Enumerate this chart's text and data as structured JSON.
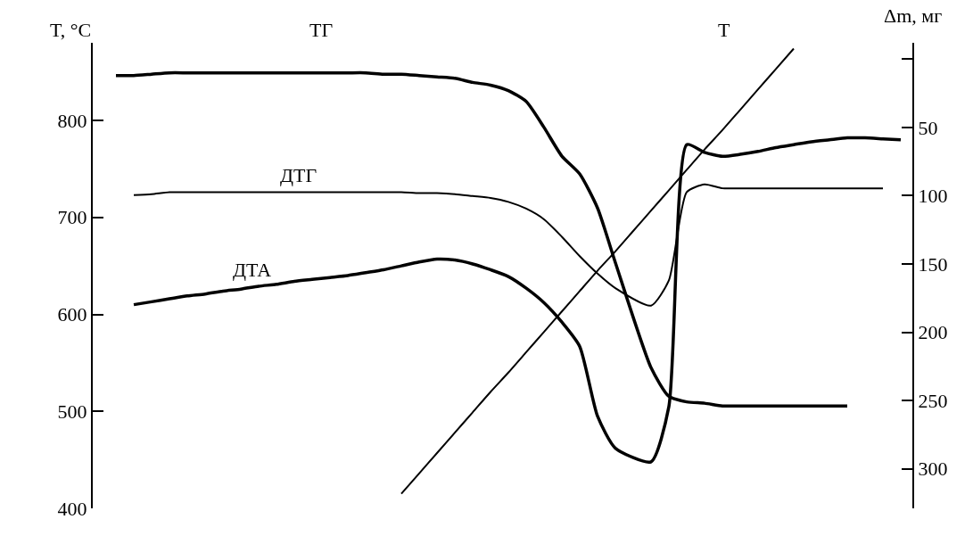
{
  "chart_data": {
    "type": "line",
    "xlabel": null,
    "ylabel": "T, °C",
    "y2label": "Δm, мг",
    "categories": [
      null,
      null,
      null,
      null,
      null,
      null,
      null,
      null,
      null,
      null,
      null,
      null,
      null,
      null,
      null,
      null,
      null,
      null,
      null,
      null,
      null,
      null,
      null,
      null,
      null,
      null,
      null,
      null,
      null,
      null,
      null,
      null,
      null,
      null,
      null,
      null,
      null,
      null,
      null,
      null,
      null,
      null,
      null,
      null,
      null
    ],
    "ylim": [
      400,
      880
    ],
    "yticks": [
      400,
      500,
      600,
      700,
      800
    ],
    "y2lim": [
      329,
      -12
    ],
    "y2ticks": [
      {
        "value": 0,
        "label": null
      },
      50,
      100,
      150,
      200,
      250,
      300
    ],
    "tick_labels": "y",
    "legend": false,
    "marker": "none",
    "series": [
      {
        "name": "T",
        "color": "#000000",
        "values": [
          null,
          null,
          null,
          null,
          null,
          null,
          null,
          null,
          null,
          null,
          null,
          null,
          null,
          null,
          null,
          null,
          415,
          436,
          457,
          478,
          499,
          520,
          540,
          561,
          582,
          603,
          624,
          645,
          665,
          686,
          707,
          728,
          749,
          770,
          790,
          811,
          832,
          853,
          874,
          null,
          null,
          null,
          null,
          null,
          null
        ]
      },
      {
        "name": "ТГ",
        "color": "#000000",
        "axis": "y2",
        "values": [
          12,
          12,
          11,
          10,
          10,
          10,
          10,
          10,
          10,
          10,
          10,
          10,
          10,
          10,
          10,
          11,
          11,
          12,
          13,
          14,
          17,
          19,
          23,
          31,
          50,
          71,
          84,
          109,
          149,
          null,
          226,
          247,
          251,
          252,
          254,
          254,
          254,
          254,
          254,
          254,
          254,
          254,
          null,
          null,
          null
        ]
      },
      {
        "name": "ДТГ",
        "color": "#000000",
        "values": [
          null,
          723,
          724,
          726,
          726,
          726,
          726,
          726,
          726,
          726,
          726,
          726,
          726,
          726,
          726,
          726,
          726,
          725,
          725,
          724,
          722,
          720,
          716,
          709,
          698,
          680,
          660,
          642,
          627,
          null,
          609,
          635,
          726,
          734,
          730,
          730,
          730,
          730,
          730,
          730,
          730,
          730,
          730,
          730,
          null
        ]
      },
      {
        "name": "ДТА",
        "color": "#000000",
        "values": [
          null,
          610,
          613,
          616,
          619,
          621,
          624,
          626,
          629,
          631,
          634,
          636,
          638,
          640,
          643,
          646,
          650,
          654,
          657,
          656,
          652,
          646,
          639,
          627,
          612,
          592,
          567,
          495,
          462,
          null,
          448,
          505,
          775,
          767,
          763,
          765,
          768,
          772,
          775,
          778,
          780,
          782,
          782,
          781,
          780
        ]
      }
    ]
  }
}
